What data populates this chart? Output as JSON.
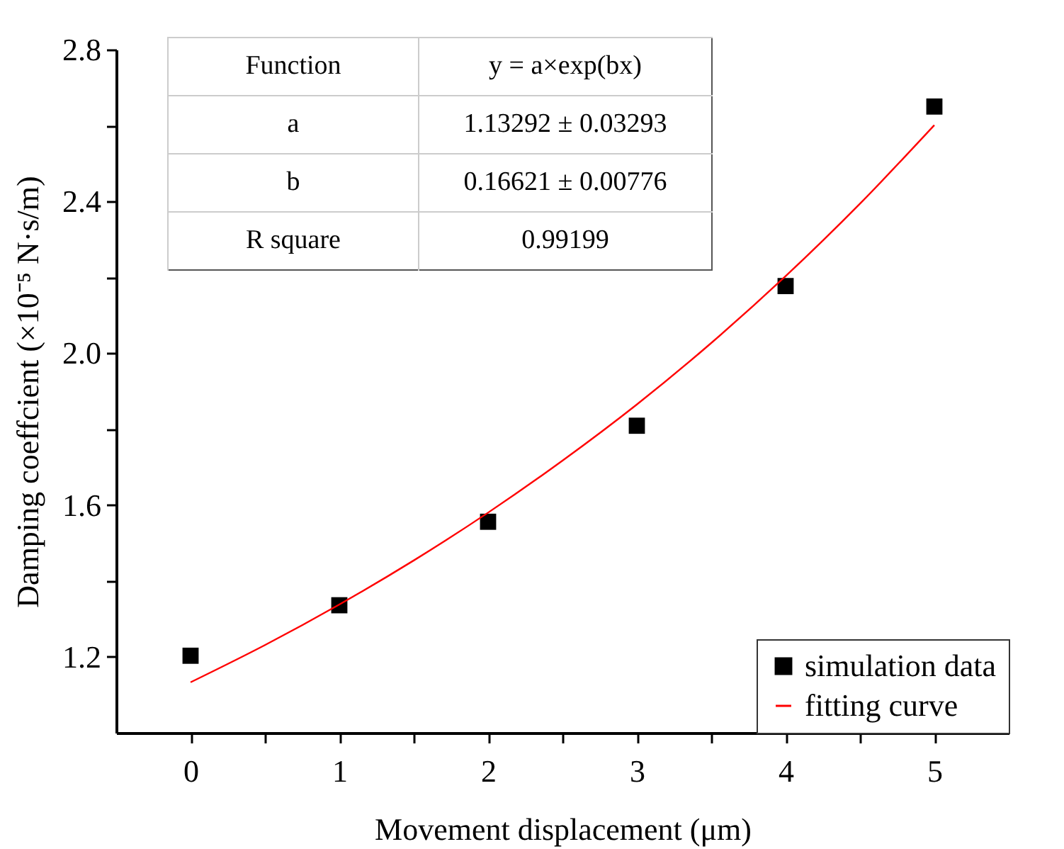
{
  "chart_data": {
    "type": "scatter",
    "xlabel": "Movement displacement (μm)",
    "ylabel": "Damping coeffcient (×10⁻⁵ N·s/m)",
    "xlim": [
      -0.5,
      5.5
    ],
    "ylim": [
      1.0,
      2.8
    ],
    "xticks": [
      0,
      {
        "value": 0.5,
        "label": null
      },
      1,
      {
        "value": 1.5,
        "label": null
      },
      2,
      {
        "value": 2.5,
        "label": null
      },
      3,
      {
        "value": 3.5,
        "label": null
      },
      4,
      {
        "value": 4.5,
        "label": null
      },
      5
    ],
    "yticks": [
      1.2,
      {
        "value": 1.4,
        "label": null
      },
      1.6,
      {
        "value": 1.8,
        "label": null
      },
      {
        "value": 2.0,
        "label": "2.0"
      },
      {
        "value": 2.2,
        "label": null
      },
      2.4,
      {
        "value": 2.6,
        "label": null
      },
      2.8
    ],
    "grid": false,
    "legend": "bottom right",
    "annotations": [
      "Function",
      "y = a×exp(bx)",
      "a",
      "1.13292 ± 0.03293",
      "b",
      "0.16621 ± 0.00776",
      "R square",
      "0.99199"
    ],
    "series": [
      {
        "name": "simulation data",
        "marker": "square",
        "color": "#000000",
        "x": [
          0,
          1,
          2,
          3,
          4,
          5
        ],
        "values": [
          1.203,
          1.336,
          1.556,
          1.809,
          2.177,
          2.65
        ]
      },
      {
        "name": "fitting curve",
        "type": "line",
        "color": "#ff0000",
        "x": [
          0,
          0.5,
          1,
          1.5,
          2,
          2.5,
          3,
          3.5,
          4,
          4.5,
          5
        ],
        "values": [
          1.133,
          1.231,
          1.338,
          1.454,
          1.58,
          1.717,
          1.865,
          2.027,
          2.203,
          2.394,
          2.601
        ]
      }
    ]
  }
}
